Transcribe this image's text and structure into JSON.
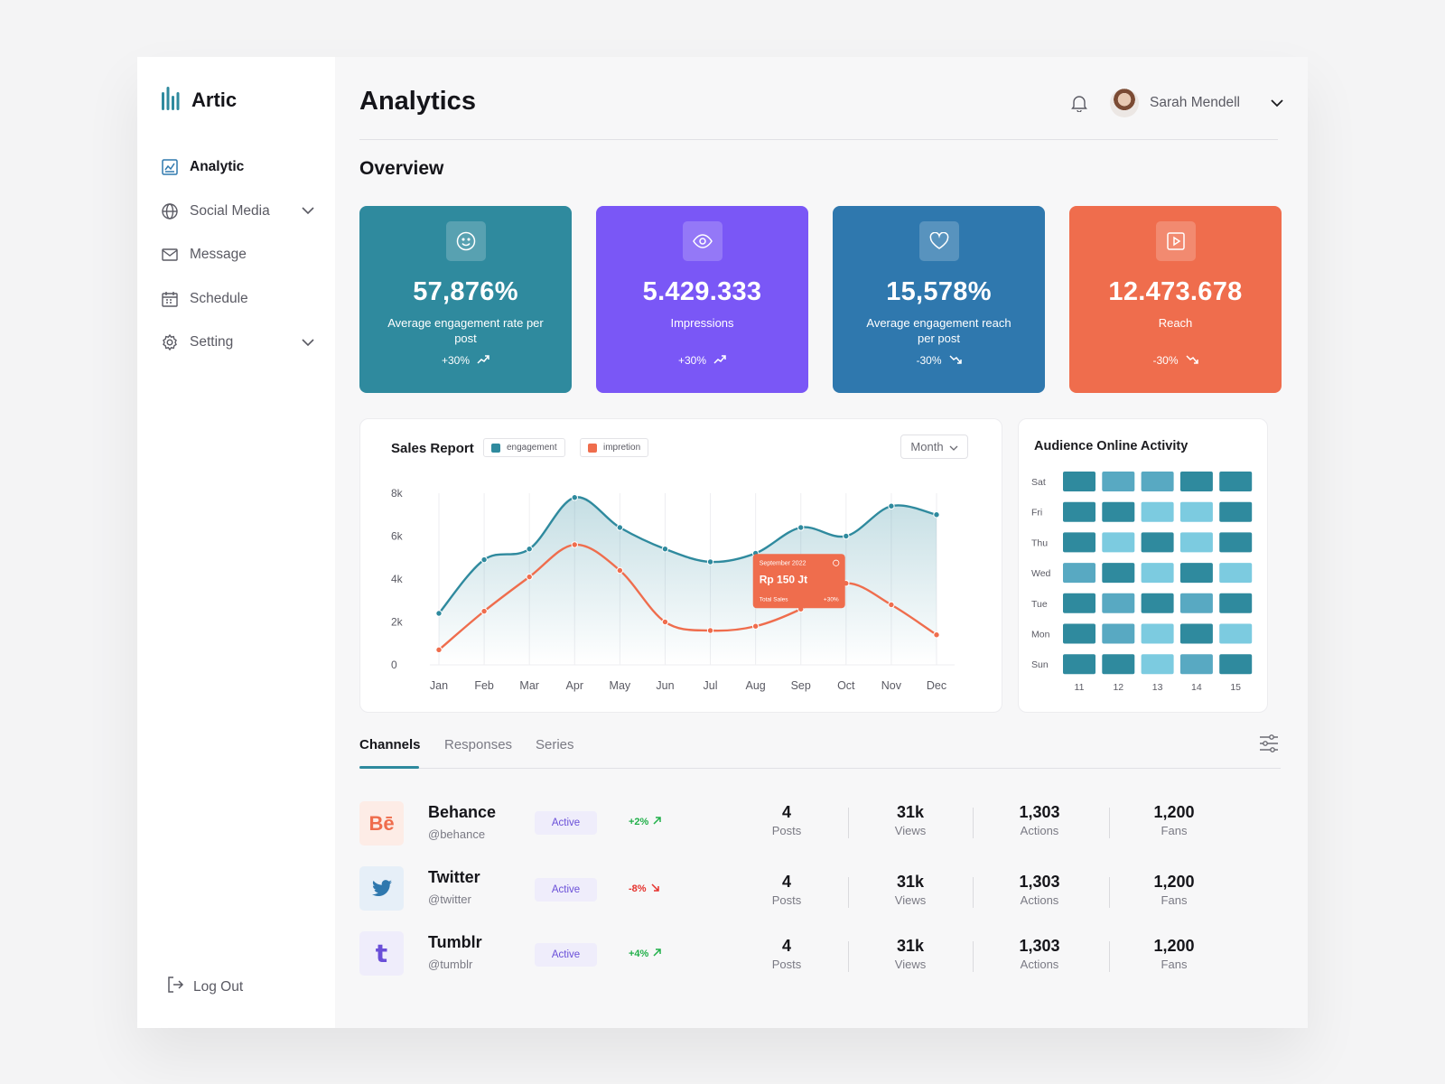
{
  "brand": {
    "name": "Artic"
  },
  "sidebar": {
    "items": [
      {
        "label": "Analytic",
        "icon": "analytics-icon",
        "active": true
      },
      {
        "label": "Social Media",
        "icon": "globe-icon",
        "has_children": true
      },
      {
        "label": "Message",
        "icon": "mail-icon"
      },
      {
        "label": "Schedule",
        "icon": "calendar-icon"
      },
      {
        "label": "Setting",
        "icon": "gear-icon",
        "has_children": true
      }
    ],
    "logout_label": "Log Out"
  },
  "header": {
    "title": "Analytics",
    "user_name": "Sarah Mendell"
  },
  "overview": {
    "title": "Overview",
    "cards": [
      {
        "value": "57,876%",
        "label": "Average engagement rate per post",
        "change": "+30%",
        "direction": "up",
        "icon": "smile-icon",
        "color": "#2f8a9e"
      },
      {
        "value": "5.429.333",
        "label": "Impressions",
        "change": "+30%",
        "direction": "up",
        "icon": "eye-icon",
        "color": "#7a57f6"
      },
      {
        "value": "15,578%",
        "label": "Average engagement reach per post",
        "change": "-30%",
        "direction": "down",
        "icon": "heart-icon",
        "color": "#2f78ae"
      },
      {
        "value": "12.473.678",
        "label": "Reach",
        "change": "-30%",
        "direction": "down",
        "icon": "play-icon",
        "color": "#ef6d4d"
      }
    ]
  },
  "sales_report": {
    "title": "Sales Report",
    "legend": [
      "engagement",
      "impretion"
    ],
    "period": "Month",
    "tooltip": {
      "date": "September 2022",
      "value": "Rp 150 Jt",
      "label": "Total Sales",
      "change": "+30%"
    }
  },
  "chart_data": [
    {
      "type": "line",
      "title": "Sales Report",
      "x": [
        "Jan",
        "Feb",
        "Mar",
        "Apr",
        "May",
        "Jun",
        "Jul",
        "Aug",
        "Sep",
        "Oct",
        "Nov",
        "Dec"
      ],
      "y_ticks": [
        "0",
        "2k",
        "4k",
        "6k",
        "8k"
      ],
      "ylim": [
        0,
        8000
      ],
      "series": [
        {
          "name": "engagement",
          "color": "#2f8a9e",
          "values": [
            2400,
            4900,
            5400,
            7800,
            6400,
            5400,
            4800,
            5200,
            6400,
            6000,
            7400,
            7000
          ]
        },
        {
          "name": "impretion",
          "color": "#ef6d4d",
          "values": [
            700,
            2500,
            4100,
            5600,
            4400,
            2000,
            1600,
            1800,
            2600,
            3800,
            2800,
            1400
          ]
        }
      ]
    },
    {
      "type": "heatmap",
      "title": "Audience Online Activity",
      "rows": [
        "Sat",
        "Fri",
        "Thu",
        "Wed",
        "Tue",
        "Mon",
        "Sun"
      ],
      "columns": [
        "11",
        "12",
        "13",
        "14",
        "15"
      ],
      "values": [
        [
          3,
          2,
          2,
          3,
          3
        ],
        [
          3,
          3,
          1,
          1,
          3
        ],
        [
          3,
          1,
          3,
          1,
          3
        ],
        [
          2,
          3,
          1,
          3,
          1
        ],
        [
          3,
          2,
          3,
          2,
          3
        ],
        [
          3,
          2,
          1,
          3,
          1
        ],
        [
          3,
          3,
          1,
          2,
          3
        ]
      ],
      "scale_colors": {
        "1": "#7ccbe0",
        "2": "#58a9c2",
        "3": "#2f8a9e"
      }
    }
  ],
  "tabs": [
    "Channels",
    "Responses",
    "Series"
  ],
  "channels": [
    {
      "name": "Behance",
      "handle": "@behance",
      "icon_text": "Bē",
      "icon_color": "#ef6d4d",
      "icon_bg": "#fdecE6",
      "status": "Active",
      "change": "+2%",
      "direction": "up",
      "posts": "4",
      "posts_label": "Posts",
      "views": "31k",
      "views_label": "Views",
      "actions": "1,303",
      "actions_label": "Actions",
      "fans": "1,200",
      "fans_label": "Fans"
    },
    {
      "name": "Twitter",
      "handle": "@twitter",
      "icon_text": "",
      "icon_color": "#2f78ae",
      "icon_bg": "#e6eff8",
      "status": "Active",
      "change": "-8%",
      "direction": "down",
      "posts": "4",
      "posts_label": "Posts",
      "views": "31k",
      "views_label": "Views",
      "actions": "1,303",
      "actions_label": "Actions",
      "fans": "1,200",
      "fans_label": "Fans"
    },
    {
      "name": "Tumblr",
      "handle": "@tumblr",
      "icon_text": "t",
      "icon_color": "#6a4fd8",
      "icon_bg": "#efedfb",
      "status": "Active",
      "change": "+4%",
      "direction": "up",
      "posts": "4",
      "posts_label": "Posts",
      "views": "31k",
      "views_label": "Views",
      "actions": "1,303",
      "actions_label": "Actions",
      "fans": "1,200",
      "fans_label": "Fans"
    }
  ],
  "colors": {
    "accent": "#2f8a9e",
    "positive": "#22b04a",
    "negative": "#e5322d"
  }
}
